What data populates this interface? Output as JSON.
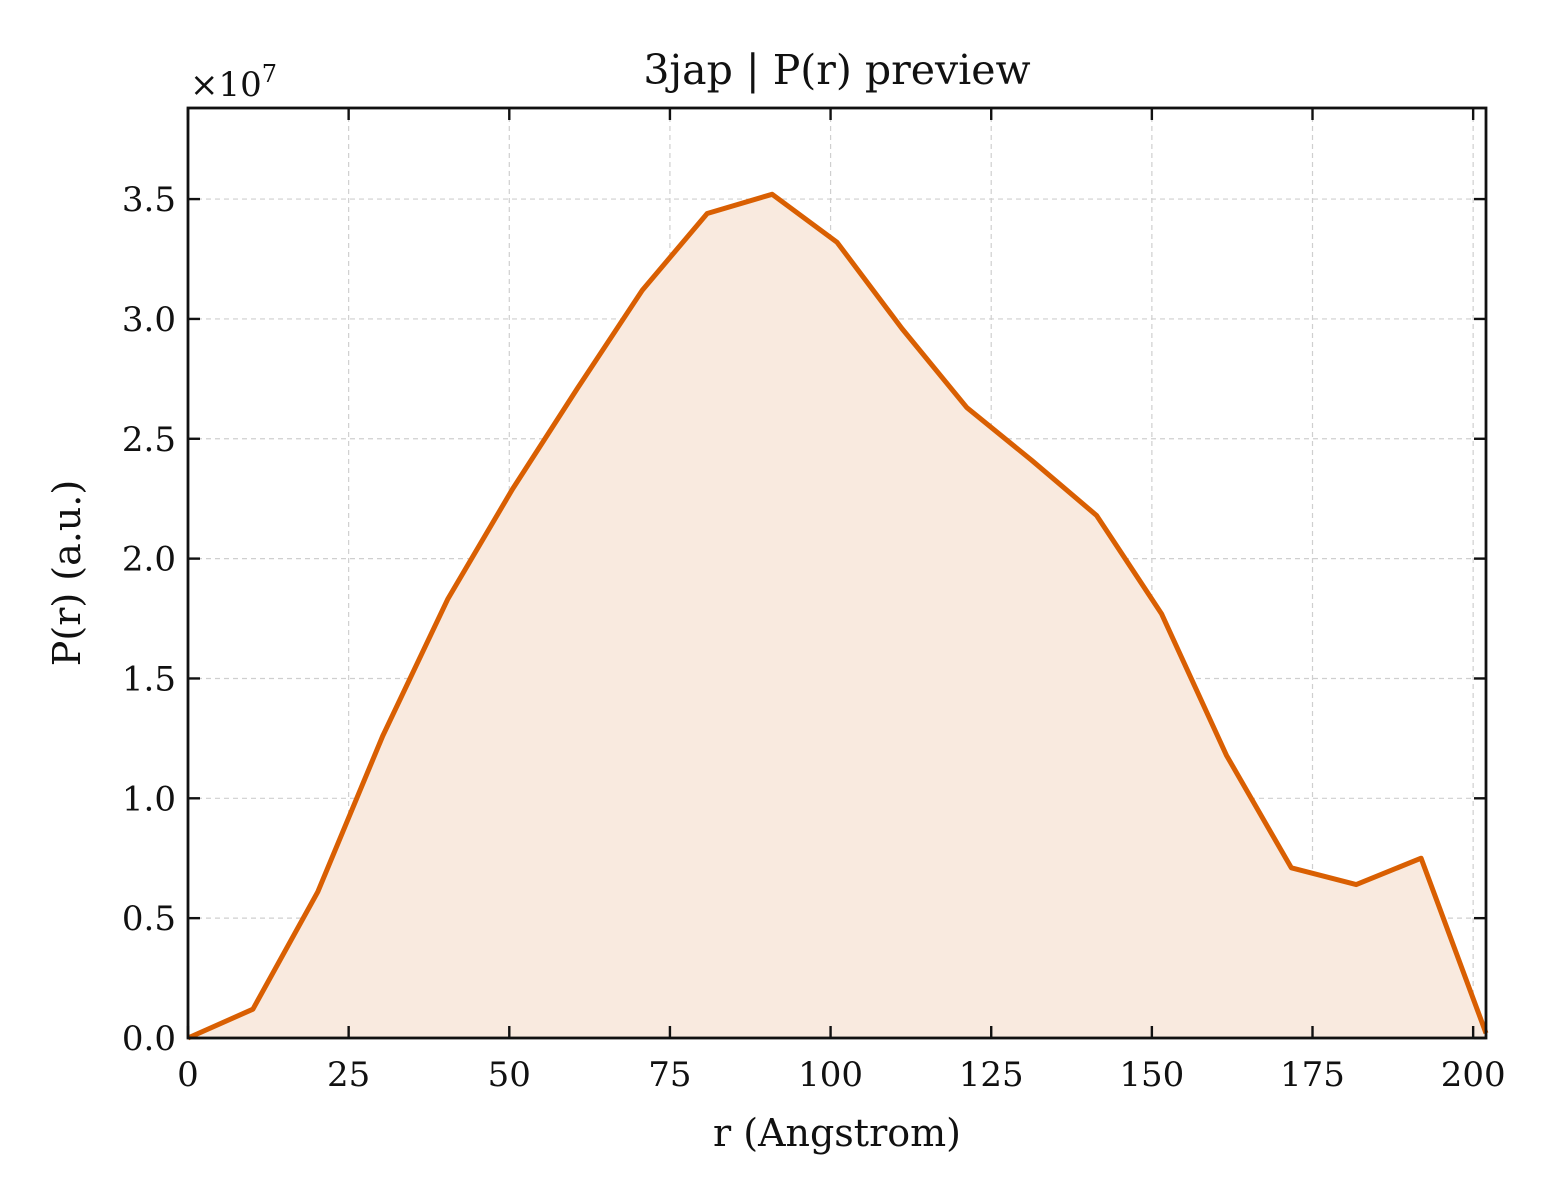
{
  "chart_data": {
    "type": "area",
    "title": "3jap | P(r) preview",
    "xlabel": "r (Angstrom)",
    "ylabel": "P(r) (a.u.)",
    "y_multiplier_label": "×10",
    "y_multiplier_exponent": "7",
    "xlim": [
      0,
      202
    ],
    "ylim": [
      0,
      3.88
    ],
    "x_ticks": [
      0,
      25,
      50,
      75,
      100,
      125,
      150,
      175,
      200
    ],
    "x_tick_labels": [
      "0",
      "25",
      "50",
      "75",
      "100",
      "125",
      "150",
      "175",
      "200"
    ],
    "y_ticks": [
      0,
      0.5,
      1.0,
      1.5,
      2.0,
      2.5,
      3.0,
      3.5
    ],
    "y_tick_labels": [
      "0.0",
      "0.5",
      "1.0",
      "1.5",
      "2.0",
      "2.5",
      "3.0",
      "3.5"
    ],
    "grid": true,
    "line_color": "#d95f02",
    "fill_color": "#f9eadf",
    "x": [
      0,
      10.1,
      20.2,
      30.3,
      40.4,
      50.5,
      60.6,
      70.7,
      80.8,
      90.9,
      101.0,
      111.1,
      121.2,
      131.3,
      141.4,
      151.5,
      161.6,
      171.7,
      181.8,
      191.9,
      202.0
    ],
    "y": [
      0.0,
      0.12,
      0.61,
      1.26,
      1.83,
      2.29,
      2.71,
      3.12,
      3.44,
      3.52,
      3.32,
      2.96,
      2.63,
      2.41,
      2.18,
      1.77,
      1.18,
      0.71,
      0.64,
      0.75,
      0.02
    ]
  }
}
